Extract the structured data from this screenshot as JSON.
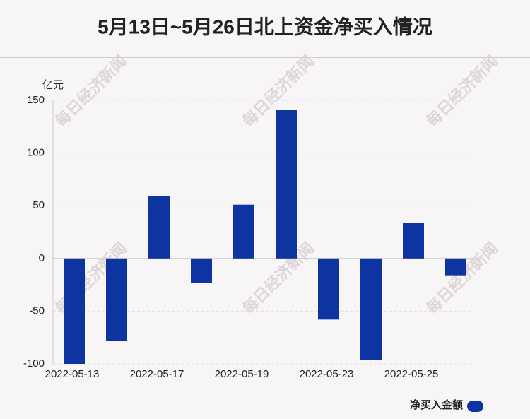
{
  "chart_data": {
    "type": "bar",
    "title": "5月13日~5月26日北上资金净买入情况",
    "y_unit": "亿元",
    "watermark": "每日经济新闻",
    "categories": [
      "2022-05-13",
      null,
      "2022-05-17",
      null,
      "2022-05-19",
      null,
      "2022-05-23",
      null,
      "2022-05-25",
      null
    ],
    "series": [
      {
        "name": "净买入金额",
        "color": "#0d34a0",
        "values": [
          -100,
          -78,
          59,
          -23,
          51,
          141,
          -58,
          -96,
          33.5,
          -16
        ]
      }
    ],
    "ylim": [
      -100,
      150
    ],
    "yticks": [
      -100,
      -50,
      0,
      50,
      100,
      150
    ],
    "grid": true,
    "legend": "bottom-right"
  }
}
